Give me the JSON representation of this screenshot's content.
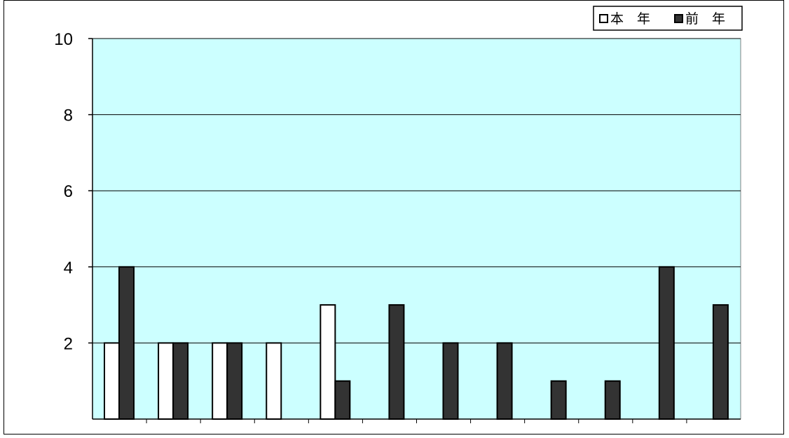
{
  "chart_data": {
    "type": "bar",
    "categories": [
      "",
      "",
      "",
      "",
      "",
      "",
      "",
      "",
      "",
      "",
      "",
      ""
    ],
    "series": [
      {
        "name": "本　年",
        "color": "#ffffff",
        "values": [
          2,
          2,
          2,
          2,
          3,
          0,
          0,
          0,
          0,
          0,
          0,
          0
        ]
      },
      {
        "name": "前　年",
        "color": "#333333",
        "values": [
          4,
          2,
          2,
          0,
          1,
          3,
          2,
          2,
          1,
          1,
          4,
          3
        ]
      }
    ],
    "title": "",
    "xlabel": "",
    "ylabel": "",
    "ylim": [
      0,
      10
    ],
    "yticks": [
      2,
      4,
      6,
      8,
      10
    ],
    "ytick_labels": [
      "2",
      "4",
      "6",
      "8",
      "10"
    ],
    "grid": true,
    "plot_background": "#ccffff",
    "legend_position": "top-right"
  },
  "legend": {
    "current_year": "本　年",
    "previous_year": "前　年"
  }
}
